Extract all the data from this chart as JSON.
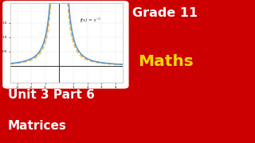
{
  "bg_color": "#CC0000",
  "grade_text": "Grade 11",
  "maths_text": "Maths",
  "unit_text": "Unit 3 Part 6",
  "matrices_text": "Matrices",
  "grade_color": "#FFFFFF",
  "maths_color": "#FFD700",
  "unit_color": "#FFFFFF",
  "matrices_color": "#FFFFFF",
  "graph_bg": "#FFFFFF",
  "curve_blue": "#5599CC",
  "curve_orange_dark": "#E8A030",
  "curve_orange_light": "#F0C060",
  "annotation": "f(x) = x⁻²",
  "xlim": [
    -3.5,
    4.5
  ],
  "ylim": [
    -0.6,
    2.2
  ],
  "xticks": [
    -3,
    -2,
    -1,
    1,
    2,
    3,
    4
  ],
  "yticks": [
    0.5,
    1.0,
    1.5
  ]
}
